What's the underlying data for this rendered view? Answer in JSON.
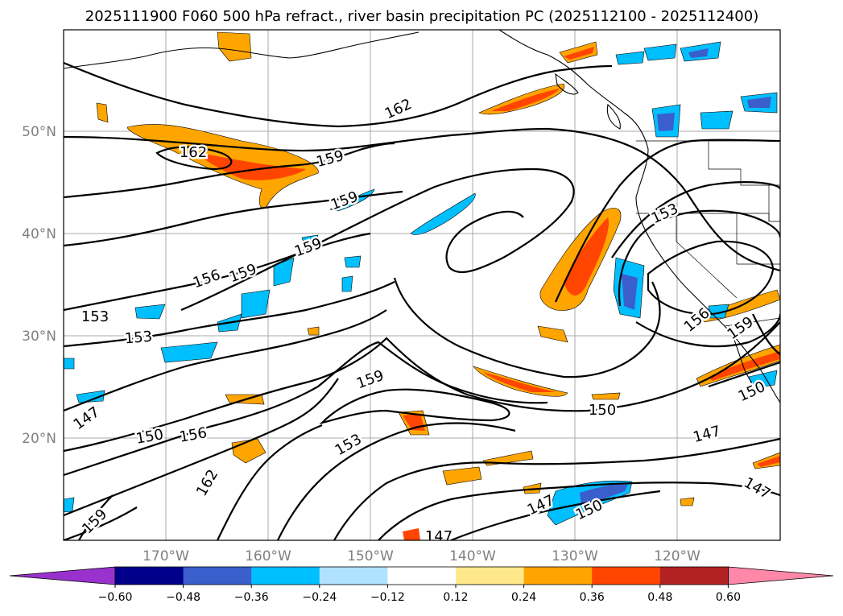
{
  "title": "2025111900 F060 500 hPa refract., river basin precipitation PC (2025112100 - 2025112400)",
  "lat_labels": [
    "50°N",
    "40°N",
    "30°N",
    "20°N"
  ],
  "lon_labels": [
    "170°W",
    "160°W",
    "150°W",
    "140°W",
    "130°W",
    "120°W"
  ],
  "colorbar": {
    "ticks": [
      "−0.60",
      "−0.48",
      "−0.36",
      "−0.24",
      "−0.12",
      "0.12",
      "0.24",
      "0.36",
      "0.48",
      "0.60"
    ],
    "colors": [
      "#9932cc",
      "#00008b",
      "#3a5fcd",
      "#00bfff",
      "#b0e2ff",
      "#ffffff",
      "#ffe88a",
      "#ffa500",
      "#ff4500",
      "#b22222",
      "#ff88a8"
    ]
  },
  "contour_labels": [
    "162",
    "162",
    "159",
    "159",
    "159",
    "159",
    "156",
    "153",
    "153",
    "147",
    "150",
    "156",
    "159",
    "153",
    "150",
    "147",
    "162",
    "159",
    "147",
    "150",
    "153",
    "156",
    "159",
    "150",
    "147",
    "147"
  ],
  "shading_colors": {
    "orange": "#ffa500",
    "red": "#ff4500",
    "cyan": "#00bfff",
    "blue": "#3a5fcd",
    "lightblue": "#b0e2ff"
  }
}
